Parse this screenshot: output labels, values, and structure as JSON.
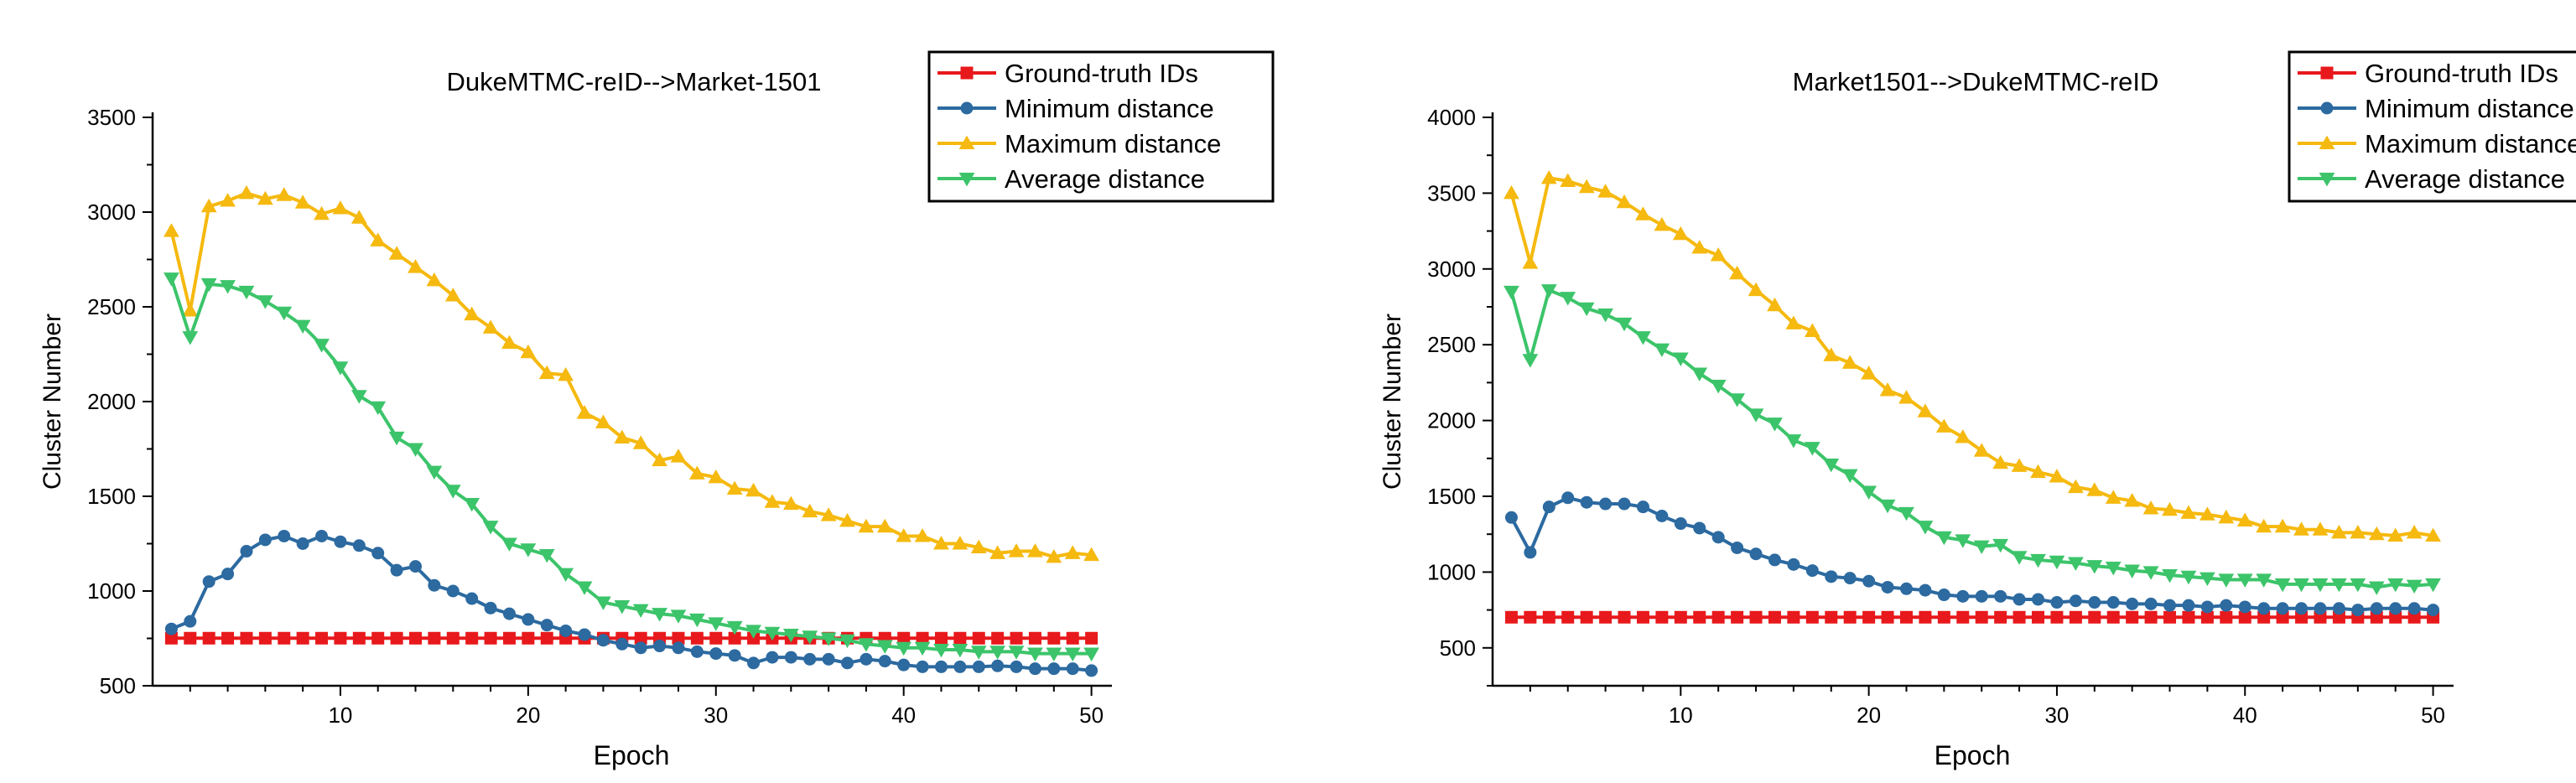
{
  "chart_data": [
    {
      "type": "line",
      "title": "DukeMTMC-reID-->Market-1501",
      "xlabel": "Epoch",
      "ylabel": "Cluster Number",
      "xlim": [
        0,
        51
      ],
      "ylim": [
        500,
        3500
      ],
      "xticks": [
        10,
        20,
        30,
        40,
        50
      ],
      "yticks": [
        500,
        1000,
        1500,
        2000,
        2500,
        3000,
        3500
      ],
      "x": [
        1,
        2,
        3,
        4,
        5,
        6,
        7,
        8,
        9,
        10,
        11,
        12,
        13,
        14,
        15,
        16,
        17,
        18,
        19,
        20,
        21,
        22,
        23,
        24,
        25,
        26,
        27,
        28,
        29,
        30,
        31,
        32,
        33,
        34,
        35,
        36,
        37,
        38,
        39,
        40,
        41,
        42,
        43,
        44,
        45,
        46,
        47,
        48,
        49,
        50
      ],
      "legend_position": "top-right",
      "series": [
        {
          "name": "Ground-truth IDs",
          "color": "#e8191c",
          "marker": "square",
          "values": [
            751,
            751,
            751,
            751,
            751,
            751,
            751,
            751,
            751,
            751,
            751,
            751,
            751,
            751,
            751,
            751,
            751,
            751,
            751,
            751,
            751,
            751,
            751,
            751,
            751,
            751,
            751,
            751,
            751,
            751,
            751,
            751,
            751,
            751,
            751,
            751,
            751,
            751,
            751,
            751,
            751,
            751,
            751,
            751,
            751,
            751,
            751,
            751,
            751,
            751
          ]
        },
        {
          "name": "Minimum distance",
          "color": "#2c6aa0",
          "marker": "circle",
          "values": [
            800,
            840,
            1050,
            1090,
            1210,
            1270,
            1290,
            1250,
            1290,
            1260,
            1240,
            1200,
            1110,
            1130,
            1030,
            1000,
            960,
            910,
            880,
            850,
            820,
            790,
            770,
            740,
            720,
            700,
            710,
            700,
            680,
            670,
            660,
            620,
            650,
            650,
            640,
            640,
            620,
            640,
            630,
            610,
            600,
            600,
            600,
            600,
            605,
            600,
            590,
            590,
            590,
            580
          ]
        },
        {
          "name": "Maximum distance",
          "color": "#f5b90f",
          "marker": "triangle-up",
          "values": [
            2900,
            2480,
            3030,
            3060,
            3100,
            3070,
            3090,
            3050,
            2990,
            3020,
            2970,
            2850,
            2780,
            2710,
            2640,
            2560,
            2460,
            2390,
            2310,
            2260,
            2150,
            2140,
            1940,
            1890,
            1810,
            1780,
            1690,
            1710,
            1620,
            1600,
            1540,
            1530,
            1470,
            1460,
            1420,
            1400,
            1370,
            1340,
            1340,
            1290,
            1290,
            1250,
            1250,
            1230,
            1200,
            1210,
            1210,
            1180,
            1200,
            1190
          ]
        },
        {
          "name": "Average distance",
          "color": "#3cc46a",
          "marker": "triangle-down",
          "values": [
            2650,
            2340,
            2620,
            2610,
            2580,
            2530,
            2470,
            2400,
            2300,
            2180,
            2030,
            1970,
            1810,
            1750,
            1630,
            1530,
            1460,
            1340,
            1250,
            1220,
            1190,
            1090,
            1020,
            940,
            920,
            900,
            880,
            870,
            850,
            830,
            810,
            790,
            780,
            770,
            760,
            750,
            740,
            720,
            710,
            700,
            700,
            690,
            690,
            680,
            680,
            680,
            670,
            670,
            670,
            670
          ]
        }
      ]
    },
    {
      "type": "line",
      "title": "Market1501-->DukeMTMC-reID",
      "xlabel": "Epoch",
      "ylabel": "Cluster Number",
      "xlim": [
        0,
        51
      ],
      "ylim": [
        250,
        4000
      ],
      "xticks": [
        10,
        20,
        30,
        40,
        50
      ],
      "yticks": [
        500,
        1000,
        1500,
        2000,
        2500,
        3000,
        3500,
        4000
      ],
      "x": [
        1,
        2,
        3,
        4,
        5,
        6,
        7,
        8,
        9,
        10,
        11,
        12,
        13,
        14,
        15,
        16,
        17,
        18,
        19,
        20,
        21,
        22,
        23,
        24,
        25,
        26,
        27,
        28,
        29,
        30,
        31,
        32,
        33,
        34,
        35,
        36,
        37,
        38,
        39,
        40,
        41,
        42,
        43,
        44,
        45,
        46,
        47,
        48,
        49,
        50
      ],
      "legend_position": "top-right",
      "series": [
        {
          "name": "Ground-truth IDs",
          "color": "#e8191c",
          "marker": "square",
          "values": [
            702,
            702,
            702,
            702,
            702,
            702,
            702,
            702,
            702,
            702,
            702,
            702,
            702,
            702,
            702,
            702,
            702,
            702,
            702,
            702,
            702,
            702,
            702,
            702,
            702,
            702,
            702,
            702,
            702,
            702,
            702,
            702,
            702,
            702,
            702,
            702,
            702,
            702,
            702,
            702,
            702,
            702,
            702,
            702,
            702,
            702,
            702,
            702,
            702,
            702
          ]
        },
        {
          "name": "Minimum distance",
          "color": "#2c6aa0",
          "marker": "circle",
          "values": [
            1360,
            1130,
            1430,
            1490,
            1460,
            1450,
            1450,
            1430,
            1370,
            1320,
            1290,
            1230,
            1160,
            1120,
            1080,
            1050,
            1010,
            970,
            960,
            940,
            900,
            890,
            880,
            850,
            840,
            840,
            840,
            820,
            820,
            800,
            810,
            800,
            800,
            790,
            790,
            780,
            780,
            770,
            780,
            770,
            760,
            760,
            760,
            760,
            760,
            750,
            760,
            760,
            760,
            750
          ]
        },
        {
          "name": "Maximum distance",
          "color": "#f5b90f",
          "marker": "triangle-up",
          "values": [
            3500,
            3040,
            3600,
            3580,
            3540,
            3510,
            3440,
            3360,
            3290,
            3230,
            3140,
            3090,
            2970,
            2860,
            2760,
            2640,
            2590,
            2430,
            2380,
            2310,
            2200,
            2150,
            2060,
            1960,
            1890,
            1800,
            1720,
            1700,
            1660,
            1630,
            1560,
            1540,
            1490,
            1470,
            1420,
            1410,
            1390,
            1380,
            1360,
            1340,
            1300,
            1300,
            1280,
            1280,
            1260,
            1260,
            1250,
            1240,
            1260,
            1240
          ]
        },
        {
          "name": "Average distance",
          "color": "#3cc46a",
          "marker": "triangle-down",
          "values": [
            2850,
            2400,
            2860,
            2810,
            2740,
            2700,
            2640,
            2550,
            2470,
            2410,
            2310,
            2230,
            2140,
            2040,
            1980,
            1870,
            1820,
            1710,
            1640,
            1530,
            1440,
            1390,
            1300,
            1230,
            1210,
            1170,
            1180,
            1100,
            1080,
            1070,
            1060,
            1040,
            1030,
            1010,
            1000,
            980,
            970,
            960,
            950,
            950,
            950,
            920,
            920,
            920,
            920,
            920,
            900,
            920,
            910,
            920
          ]
        }
      ]
    }
  ]
}
